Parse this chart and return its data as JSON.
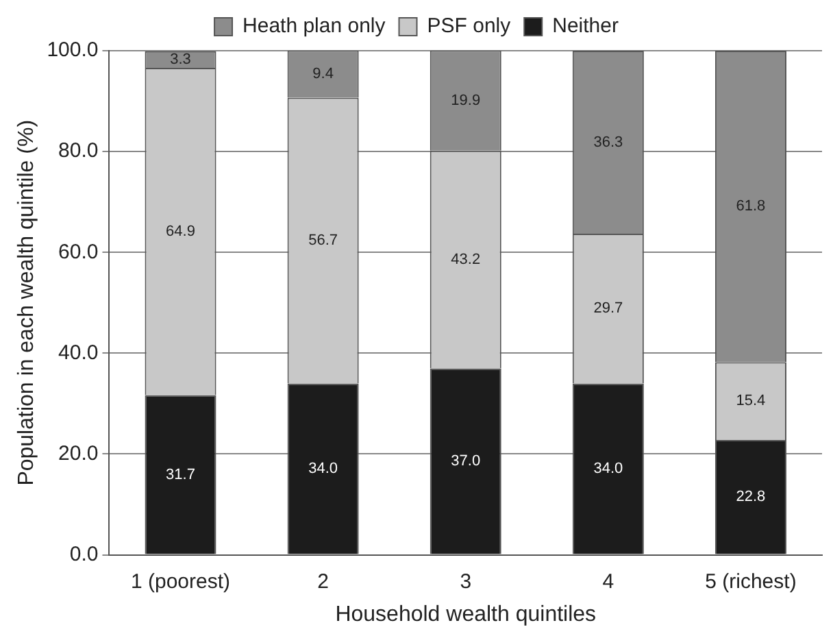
{
  "chart_data": {
    "type": "bar",
    "stacked": true,
    "xlabel": "Household wealth quintiles",
    "ylabel": "Population in each wealth quintile (%)",
    "categories": [
      "1 (poorest)",
      "2",
      "3",
      "4",
      "5 (richest)"
    ],
    "series": [
      {
        "name": "Neither",
        "color": "#1c1c1c",
        "values": [
          31.7,
          34.0,
          37.0,
          34.0,
          22.8
        ],
        "value_labels": [
          "31.7",
          "34.0",
          "37.0",
          "34.0",
          "22.8"
        ]
      },
      {
        "name": "PSF only",
        "color": "#c8c8c8",
        "values": [
          64.9,
          56.7,
          43.2,
          29.7,
          15.4
        ],
        "value_labels": [
          "64.9",
          "56.7",
          "43.2",
          "29.7",
          "15.4"
        ]
      },
      {
        "name": "Heath plan only",
        "color": "#8c8c8c",
        "values": [
          3.3,
          9.4,
          19.9,
          36.3,
          61.8
        ],
        "value_labels": [
          "3.3",
          "9.4",
          "19.9",
          "36.3",
          "61.8"
        ]
      }
    ],
    "ylim": [
      0,
      100
    ],
    "yticks": [
      {
        "value": 0,
        "label": "0.0"
      },
      {
        "value": 20,
        "label": "20.0"
      },
      {
        "value": 40,
        "label": "40.0"
      },
      {
        "value": 60,
        "label": "60.0"
      },
      {
        "value": 80,
        "label": "80.0"
      },
      {
        "value": 100,
        "label": "100.0"
      }
    ],
    "grid": "y",
    "legend": "top"
  }
}
